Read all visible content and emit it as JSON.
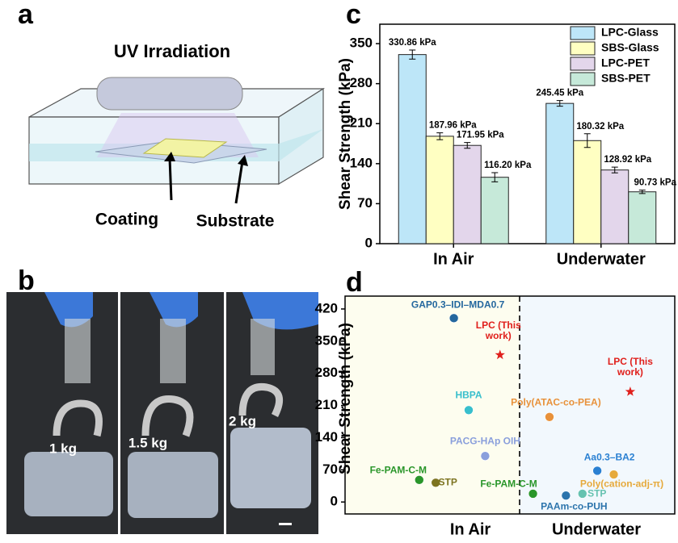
{
  "panel_labels": [
    "a",
    "b",
    "c",
    "d"
  ],
  "diagram": {
    "title": "UV Irradiation",
    "labels": [
      "Coating",
      "Substrate"
    ]
  },
  "photo": {
    "labels": [
      "1 kg",
      "1.5 kg",
      "2 kg"
    ]
  },
  "chart_data": [
    {
      "type": "bar",
      "ylabel": "Shear Strength (kPa)",
      "categories": [
        "In Air",
        "Underwater"
      ],
      "ylim": [
        0,
        384
      ],
      "yticks": [
        0,
        70,
        140,
        210,
        280,
        350
      ],
      "legend": "upper right",
      "series": [
        {
          "name": "LPC-Glass",
          "color": "#bde6f8",
          "values": [
            330.86,
            245.45
          ],
          "errors": [
            8,
            5
          ],
          "value_labels": [
            "330.86 kPa",
            "245.45 kPa"
          ]
        },
        {
          "name": "SBS-Glass",
          "color": "#ffffc2",
          "values": [
            187.96,
            180.32
          ],
          "errors": [
            6,
            12
          ],
          "value_labels": [
            "187.96 kPa",
            "180.32 kPa"
          ]
        },
        {
          "name": "LPC-PET",
          "color": "#e3d6eb",
          "values": [
            171.95,
            128.92
          ],
          "errors": [
            5,
            5
          ],
          "value_labels": [
            "171.95 kPa",
            "128.92 kPa"
          ]
        },
        {
          "name": "SBS-PET",
          "color": "#c6e9d9",
          "values": [
            116.2,
            90.73
          ],
          "errors": [
            8,
            3
          ],
          "value_labels": [
            "116.20 kPa",
            "90.73 kPa"
          ]
        }
      ]
    },
    {
      "type": "scatter",
      "ylabel": "Shear Strength (kPa)",
      "regions": [
        "In Air",
        "Underwater"
      ],
      "xlim": [
        0,
        10
      ],
      "ylim": [
        -26,
        448
      ],
      "yticks": [
        0,
        70,
        140,
        210,
        280,
        350,
        420
      ],
      "points": [
        {
          "name": "GAP0.3–IDI–MDA0.7",
          "color": "#24679e",
          "x": 3.3,
          "y": 400,
          "marker": "circle"
        },
        {
          "name": "LPC (This work)",
          "color": "#e0201c",
          "x": 4.7,
          "y": 320,
          "marker": "star"
        },
        {
          "name": "HBPA",
          "color": "#38bfcc",
          "x": 3.75,
          "y": 200,
          "marker": "circle"
        },
        {
          "name": "PACG-HAp OIH",
          "color": "#8a9fdc",
          "x": 4.25,
          "y": 100,
          "marker": "circle"
        },
        {
          "name": "Fe-PAM-C-M",
          "color": "#2a962a",
          "x": 2.25,
          "y": 48,
          "marker": "circle"
        },
        {
          "name": "STP",
          "color": "#7d7420",
          "x": 2.75,
          "y": 42,
          "marker": "circle"
        },
        {
          "name": "LPC (This work)",
          "color": "#e0201c",
          "x": 8.65,
          "y": 240,
          "marker": "star"
        },
        {
          "name": "Poly(ATAC-co-PEA)",
          "color": "#e8913a",
          "x": 6.2,
          "y": 185,
          "marker": "circle"
        },
        {
          "name": "Aa0.3–BA2",
          "color": "#2a80d2",
          "x": 7.65,
          "y": 68,
          "marker": "circle"
        },
        {
          "name": "Poly(cation-adj-π)",
          "color": "#e6aa3c",
          "x": 8.15,
          "y": 60,
          "marker": "circle"
        },
        {
          "name": "Fe-PAM-C-M",
          "color": "#2a962a",
          "x": 5.7,
          "y": 18,
          "marker": "circle"
        },
        {
          "name": "PAAm-co-PUH",
          "color": "#2c74ac",
          "x": 6.7,
          "y": 14,
          "marker": "circle"
        },
        {
          "name": "STP",
          "color": "#66c2b0",
          "x": 7.2,
          "y": 18,
          "marker": "circle"
        }
      ]
    }
  ]
}
